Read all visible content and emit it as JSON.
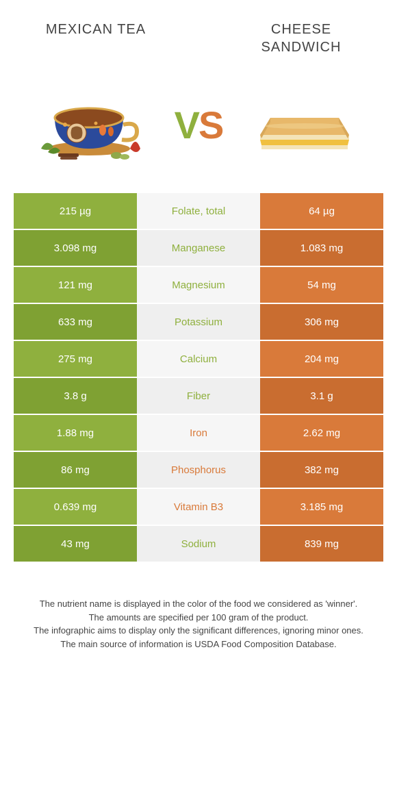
{
  "header": {
    "left_title": "Mexican tea",
    "right_title": "Cheese sandwich"
  },
  "vs": {
    "v": "V",
    "s": "S"
  },
  "colors": {
    "green": "#8fb03e",
    "green_dark": "#7fa133",
    "orange": "#d97a3a",
    "orange_dark": "#c96d30",
    "grey": "#f6f6f6",
    "grey_dark": "#efefef"
  },
  "rows": [
    {
      "left": "215 µg",
      "label": "Folate, total",
      "right": "64 µg",
      "winner": "green"
    },
    {
      "left": "3.098 mg",
      "label": "Manganese",
      "right": "1.083 mg",
      "winner": "green"
    },
    {
      "left": "121 mg",
      "label": "Magnesium",
      "right": "54 mg",
      "winner": "green"
    },
    {
      "left": "633 mg",
      "label": "Potassium",
      "right": "306 mg",
      "winner": "green"
    },
    {
      "left": "275 mg",
      "label": "Calcium",
      "right": "204 mg",
      "winner": "green"
    },
    {
      "left": "3.8 g",
      "label": "Fiber",
      "right": "3.1 g",
      "winner": "green"
    },
    {
      "left": "1.88 mg",
      "label": "Iron",
      "right": "2.62 mg",
      "winner": "orange"
    },
    {
      "left": "86 mg",
      "label": "Phosphorus",
      "right": "382 mg",
      "winner": "orange"
    },
    {
      "left": "0.639 mg",
      "label": "Vitamin B3",
      "right": "3.185 mg",
      "winner": "orange"
    },
    {
      "left": "43 mg",
      "label": "Sodium",
      "right": "839 mg",
      "winner": "green"
    }
  ],
  "footer": {
    "line1": "The nutrient name is displayed in the color of the food we considered as 'winner'.",
    "line2": "The amounts are specified per 100 gram of the product.",
    "line3": "The infographic aims to display only the significant differences, ignoring minor ones.",
    "line4": "The main source of information is USDA Food Composition Database."
  }
}
